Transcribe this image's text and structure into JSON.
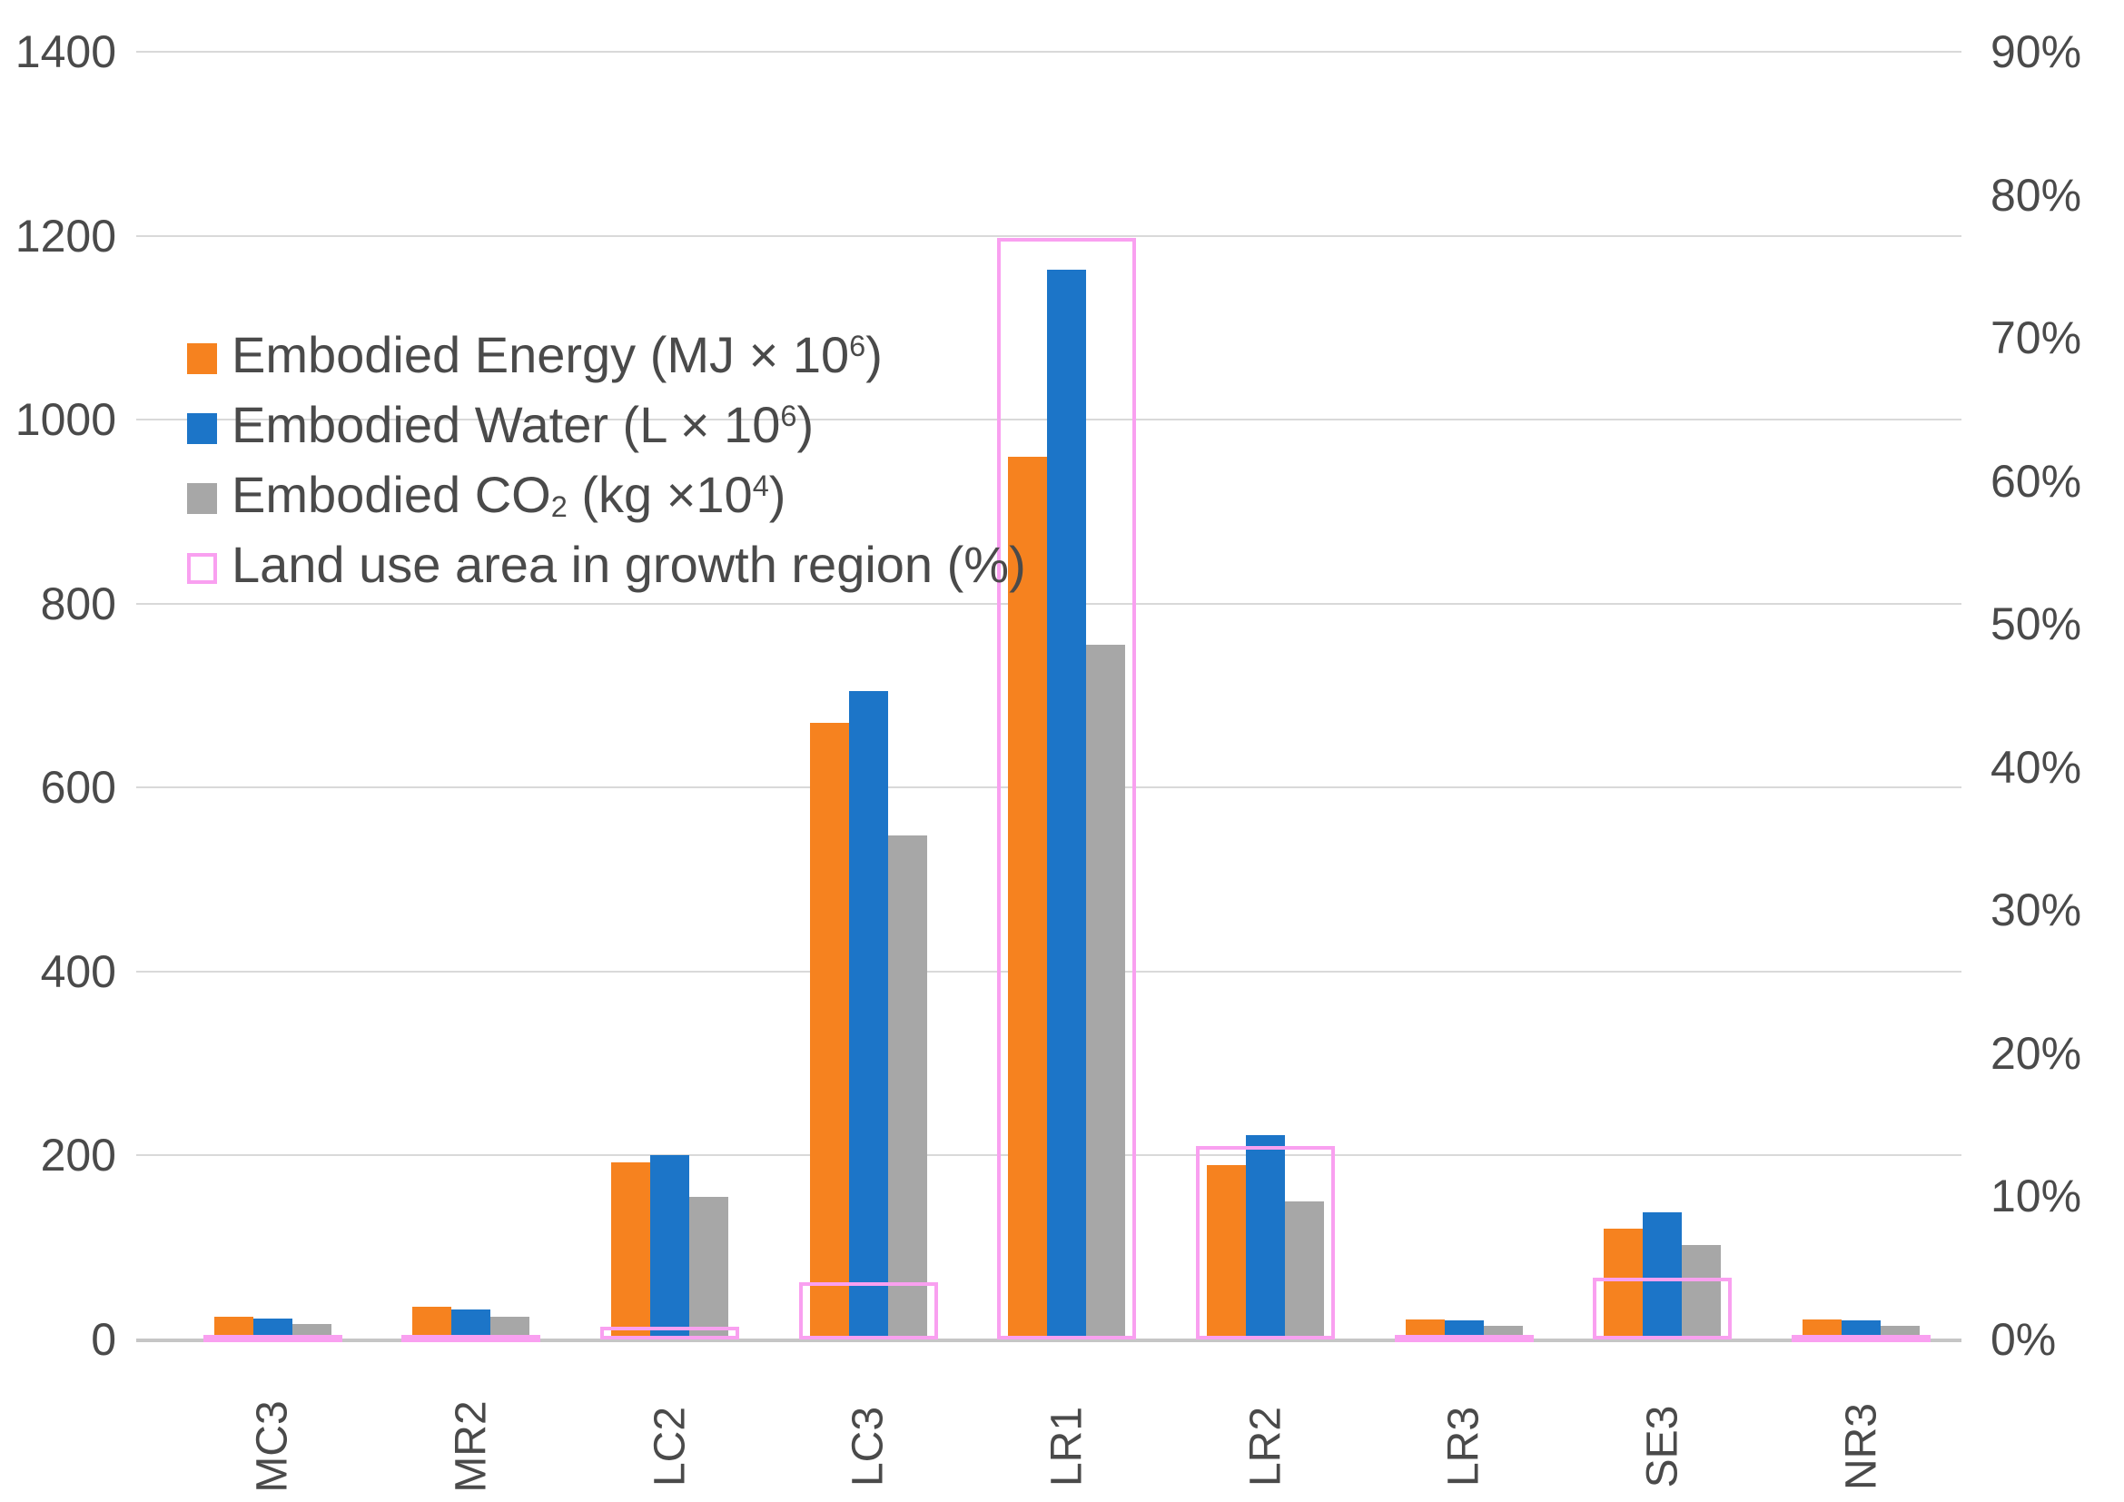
{
  "chart_data": {
    "type": "bar",
    "title": "",
    "categories": [
      "MC3",
      "MR2",
      "LC2",
      "LC3",
      "LR1",
      "LR2",
      "LR3",
      "SE3",
      "NR3"
    ],
    "series": [
      {
        "name": "Embodied Energy (MJ × 10^6)",
        "axis": "left",
        "color": "#F6821F",
        "style": "filled",
        "values": [
          25,
          36,
          193,
          670,
          960,
          190,
          22,
          120,
          22
        ]
      },
      {
        "name": "Embodied Water (L × 10^6)",
        "axis": "left",
        "color": "#1C75C8",
        "style": "filled",
        "values": [
          23,
          33,
          200,
          705,
          1163,
          222,
          21,
          138,
          21
        ]
      },
      {
        "name": "Embodied CO2 (kg × 10^4)",
        "axis": "left",
        "color": "#A7A7A7",
        "style": "filled",
        "values": [
          17,
          25,
          155,
          548,
          755,
          150,
          15,
          103,
          15
        ]
      },
      {
        "name": "Land use area in growth region (%)",
        "axis": "right",
        "color": "#F9A0F0",
        "style": "outline",
        "values": [
          0.3,
          0.3,
          0.9,
          4,
          77,
          13.5,
          0.3,
          4.3,
          0.3
        ]
      }
    ],
    "left_axis": {
      "min": 0,
      "max": 1400,
      "tick_step": 200,
      "ticks": [
        "1400",
        "1200",
        "1000",
        "800",
        "600",
        "400",
        "200",
        "0"
      ]
    },
    "right_axis": {
      "min": 0,
      "max": 90,
      "tick_step": 10,
      "ticks": [
        "90%",
        "80%",
        "70%",
        "60%",
        "50%",
        "40%",
        "30%",
        "20%",
        "10%",
        "0%"
      ]
    },
    "grid": true,
    "legend_position": "inside-upper-left"
  },
  "legend": {
    "items": [
      {
        "pre": "Embodied Energy (MJ × 10",
        "sub": "",
        "mid": "",
        "sup": "6",
        "post": ")"
      },
      {
        "pre": "Embodied Water (L × 10",
        "sub": "",
        "mid": "",
        "sup": "6",
        "post": ")"
      },
      {
        "pre": "Embodied CO",
        "sub": "2",
        "mid": " (kg ×10",
        "sup": "4",
        "post": ")"
      },
      {
        "pre": "Land use area in growth region (%)",
        "sub": "",
        "mid": "",
        "sup": "",
        "post": ""
      }
    ]
  },
  "colors": {
    "orange": "#F6821F",
    "blue": "#1C75C8",
    "gray": "#A7A7A7",
    "pink": "#F9A0F0",
    "grid": "#D9D9D9",
    "axis_line": "#C6C6C6",
    "text": "#4A4A4A",
    "background": "#FFFFFF"
  }
}
